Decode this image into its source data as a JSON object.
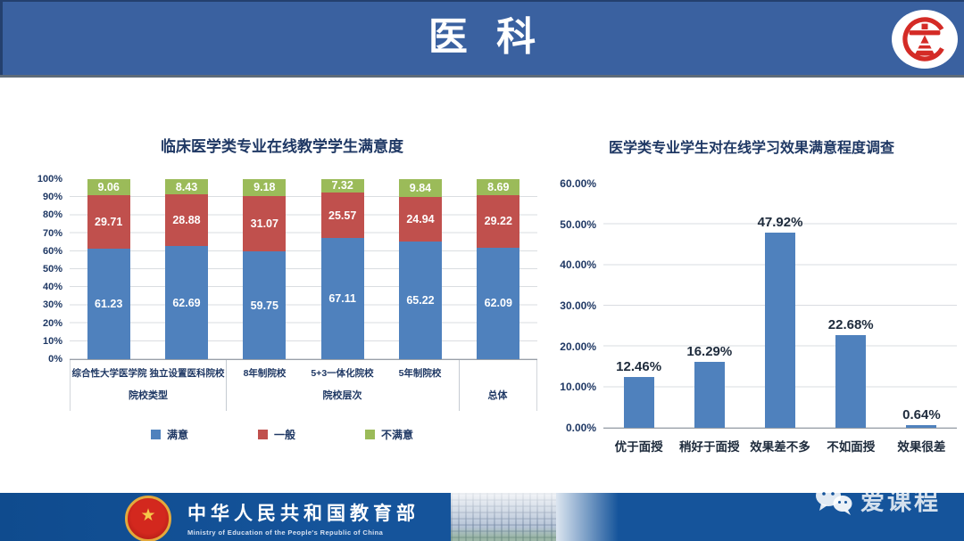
{
  "banner": {
    "title": "医 科"
  },
  "chart_data": [
    {
      "type": "bar",
      "stacked": true,
      "title": "临床医学类专业在线教学学生满意度",
      "categories": [
        "综合性大学医学院",
        "独立设置医科院校",
        "8年制院校",
        "5+3一体化院校",
        "5年制院校",
        "总体"
      ],
      "category_groups": [
        {
          "label": "院校类型",
          "span": 2
        },
        {
          "label": "院校层次",
          "span": 3
        },
        {
          "label": "总体",
          "span": 1
        }
      ],
      "series": [
        {
          "name": "满意",
          "color": "#4F81BD",
          "values": [
            61.23,
            62.69,
            59.75,
            67.11,
            65.22,
            62.09
          ]
        },
        {
          "name": "一般",
          "color": "#C0504D",
          "values": [
            29.71,
            28.88,
            31.07,
            25.57,
            24.94,
            29.22
          ]
        },
        {
          "name": "不满意",
          "color": "#9BBB59",
          "values": [
            9.06,
            8.43,
            9.18,
            7.32,
            9.84,
            8.69
          ]
        }
      ],
      "ylim": [
        0,
        100
      ],
      "yticks": [
        "0%",
        "10%",
        "20%",
        "30%",
        "40%",
        "50%",
        "60%",
        "70%",
        "80%",
        "90%",
        "100%"
      ],
      "grid": true,
      "legend_position": "bottom"
    },
    {
      "type": "bar",
      "title": "医学类专业学生对在线学习效果满意程度调查",
      "categories": [
        "优于面授",
        "稍好于面授",
        "效果差不多",
        "不如面授",
        "效果很差"
      ],
      "values": [
        12.46,
        16.29,
        47.92,
        22.68,
        0.64
      ],
      "data_labels": [
        "12.46%",
        "16.29%",
        "47.92%",
        "22.68%",
        "0.64%"
      ],
      "bar_color": "#4F81BD",
      "ylim": [
        0,
        60
      ],
      "yticks": [
        "0.00%",
        "10.00%",
        "20.00%",
        "30.00%",
        "40.00%",
        "50.00%",
        "60.00%"
      ],
      "grid": true
    }
  ],
  "footer": {
    "ministry_cn": "中华人民共和国教育部",
    "ministry_en": "Ministry of Education of the People's Republic of China",
    "brand": "爱课程"
  },
  "colors": {
    "banner_blue": "#3A61A0",
    "footer_blue": "#15549B",
    "series_blue": "#4F81BD",
    "series_red": "#C0504D",
    "series_green": "#9BBB59",
    "title_navy": "#1F3864"
  }
}
